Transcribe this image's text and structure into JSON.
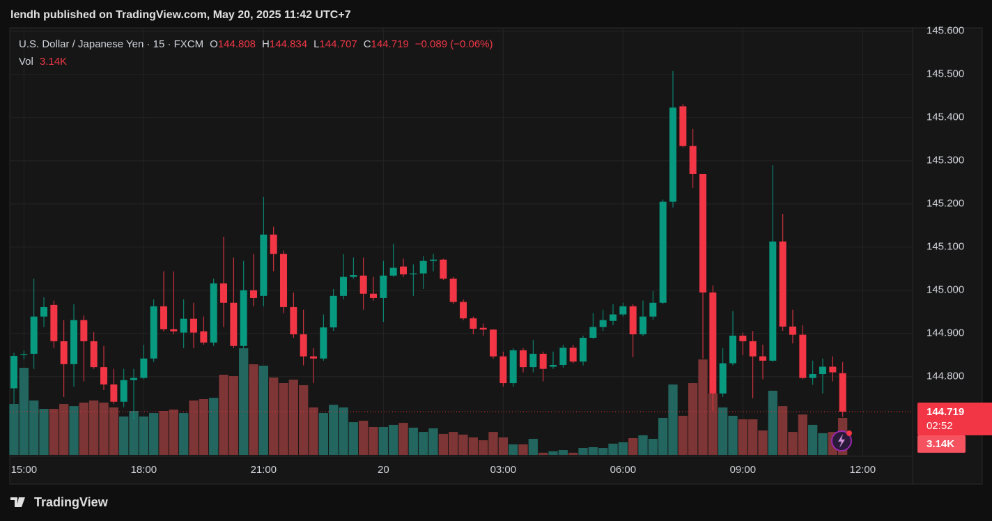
{
  "header": "lendh published on TradingView.com, May 20, 2025 11:42 UTC+7",
  "footer": "TradingView",
  "chart_data": {
    "type": "candlestick",
    "title": "U.S. Dollar / Japanese Yen · 15 · FXCM",
    "ohlc_letters": [
      "O",
      "H",
      "L",
      "C"
    ],
    "change": "−0.089 (−0.06%)",
    "volume_name": "Vol",
    "volume_value_label": "3.14K",
    "countdown": "02:52",
    "up_color": "#089981",
    "down_color": "#f23645",
    "volume_up_color": "#22665f",
    "volume_down_color": "#7e3535",
    "grid": true,
    "ylim": [
      144.619,
      145.606
    ],
    "yticks": [
      {
        "value": 145.6,
        "label": "145.600"
      },
      {
        "value": 145.5,
        "label": "145.500"
      },
      {
        "value": 145.4,
        "label": "145.400"
      },
      {
        "value": 145.3,
        "label": "145.300"
      },
      {
        "value": 145.2,
        "label": "145.200"
      },
      {
        "value": 145.1,
        "label": "145.100"
      },
      {
        "value": 145.0,
        "label": "145.000"
      },
      {
        "value": 144.9,
        "label": "144.900"
      },
      {
        "value": 144.8,
        "label": "144.800"
      }
    ],
    "xlim": [
      -0.35,
      90
    ],
    "xticks": [
      {
        "value": 1,
        "label": "15:00"
      },
      {
        "value": 13,
        "label": "18:00"
      },
      {
        "value": 25,
        "label": "21:00"
      },
      {
        "value": 37,
        "label": "20"
      },
      {
        "value": 49,
        "label": "03:00"
      },
      {
        "value": 61,
        "label": "06:00"
      },
      {
        "value": 73,
        "label": "09:00"
      },
      {
        "value": 85,
        "label": "12:00"
      }
    ],
    "open": [
      144.773,
      144.85,
      144.853,
      144.939,
      144.966,
      144.882,
      144.829,
      144.931,
      144.882,
      144.822,
      144.782,
      144.742,
      144.792,
      144.797,
      144.842,
      144.963,
      144.91,
      144.902,
      144.934,
      144.905,
      144.879,
      145.016,
      144.971,
      144.871,
      145.0,
      144.987,
      145.129,
      145.084,
      144.961,
      144.898,
      144.847,
      144.842,
      144.914,
      144.987,
      145.031,
      145.034,
      144.992,
      144.982,
      145.034,
      145.055,
      145.037,
      145.039,
      145.068,
      145.071,
      145.027,
      144.973,
      144.935,
      144.913,
      144.909,
      144.847,
      144.785,
      144.861,
      144.822,
      144.853,
      144.823,
      144.827,
      144.867,
      144.835,
      144.89,
      144.915,
      144.929,
      144.944,
      144.963,
      144.898,
      144.939,
      144.971,
      145.205,
      145.426,
      145.334,
      145.269,
      144.995,
      144.761,
      144.831,
      144.895,
      144.882,
      144.847,
      144.837,
      145.113,
      144.916,
      144.897,
      144.797,
      144.806,
      144.823,
      144.808
    ],
    "high": [
      144.855,
      144.86,
      145.027,
      144.984,
      144.976,
      144.931,
      144.968,
      144.942,
      144.903,
      144.871,
      144.818,
      144.818,
      144.818,
      144.874,
      144.979,
      145.044,
      145.044,
      144.979,
      144.971,
      144.939,
      145.027,
      145.124,
      145.076,
      145.068,
      145.084,
      145.216,
      145.147,
      145.092,
      144.995,
      144.955,
      144.866,
      144.944,
      145.003,
      145.084,
      145.076,
      145.076,
      145.031,
      145.068,
      145.108,
      145.073,
      145.06,
      145.079,
      145.084,
      145.073,
      145.031,
      144.979,
      144.939,
      144.923,
      144.91,
      144.858,
      144.866,
      144.866,
      144.885,
      144.858,
      144.858,
      144.874,
      144.874,
      144.895,
      144.947,
      144.955,
      144.968,
      144.971,
      144.968,
      144.976,
      144.998,
      145.21,
      145.508,
      145.431,
      145.374,
      145.269,
      145.011,
      144.866,
      144.952,
      144.902,
      144.906,
      144.874,
      145.29,
      145.177,
      144.955,
      144.919,
      144.837,
      144.842,
      144.847,
      144.834
    ],
    "low": [
      144.737,
      144.84,
      144.818,
      144.915,
      144.866,
      144.753,
      144.777,
      144.789,
      144.818,
      144.769,
      144.737,
      144.729,
      144.702,
      144.794,
      144.834,
      144.905,
      144.898,
      144.866,
      144.866,
      144.874,
      144.871,
      144.915,
      144.866,
      144.866,
      144.963,
      144.963,
      145.044,
      144.947,
      144.89,
      144.826,
      144.785,
      144.837,
      144.906,
      144.979,
      145.027,
      144.955,
      144.976,
      144.927,
      145.031,
      145.031,
      144.987,
      145.003,
      145.044,
      145.024,
      144.968,
      144.931,
      144.898,
      144.895,
      144.842,
      144.777,
      144.777,
      144.81,
      144.81,
      144.789,
      144.818,
      144.821,
      144.831,
      144.826,
      144.887,
      144.906,
      144.919,
      144.939,
      144.845,
      144.894,
      144.931,
      144.968,
      145.192,
      145.331,
      145.237,
      144.842,
      144.721,
      144.753,
      144.826,
      144.85,
      144.75,
      144.794,
      144.834,
      144.906,
      144.877,
      144.794,
      144.781,
      144.761,
      144.789,
      144.707
    ],
    "close": [
      144.848,
      144.852,
      144.939,
      144.961,
      144.882,
      144.829,
      144.931,
      144.882,
      144.822,
      144.782,
      144.742,
      144.792,
      144.797,
      144.842,
      144.963,
      144.91,
      144.905,
      144.934,
      144.902,
      144.879,
      145.016,
      144.971,
      144.871,
      145.0,
      144.982,
      145.129,
      145.084,
      144.961,
      144.898,
      144.847,
      144.842,
      144.914,
      144.987,
      145.031,
      145.035,
      144.992,
      144.982,
      145.034,
      145.052,
      145.037,
      145.039,
      145.068,
      145.071,
      145.027,
      144.973,
      144.935,
      144.911,
      144.909,
      144.847,
      144.785,
      144.861,
      144.822,
      144.853,
      144.818,
      144.827,
      144.867,
      144.835,
      144.89,
      144.915,
      144.931,
      144.944,
      144.963,
      144.898,
      144.939,
      144.971,
      145.205,
      145.423,
      145.334,
      145.269,
      144.995,
      144.761,
      144.831,
      144.895,
      144.882,
      144.847,
      144.837,
      145.113,
      144.916,
      144.897,
      144.797,
      144.806,
      144.823,
      144.81,
      144.719
    ],
    "volume": [
      4320,
      7400,
      4620,
      3910,
      3910,
      4320,
      4140,
      4440,
      4620,
      4440,
      4030,
      3260,
      3730,
      3260,
      3550,
      3730,
      3850,
      3550,
      4620,
      4740,
      4850,
      6810,
      6690,
      9060,
      7700,
      7580,
      6570,
      6100,
      6390,
      5920,
      4030,
      3550,
      4260,
      4030,
      2780,
      2900,
      2370,
      2370,
      2550,
      2720,
      2310,
      1950,
      2250,
      1780,
      1950,
      1720,
      1480,
      1240,
      1950,
      1480,
      890,
      890,
      1360,
      180,
      300,
      410,
      180,
      590,
      650,
      590,
      950,
      1070,
      1420,
      1660,
      1360,
      3140,
      5980,
      3320,
      6100,
      8110,
      5210,
      4030,
      3320,
      3020,
      3020,
      2070,
      5450,
      4140,
      1950,
      3430,
      2550,
      1840,
      1950,
      3140
    ]
  }
}
